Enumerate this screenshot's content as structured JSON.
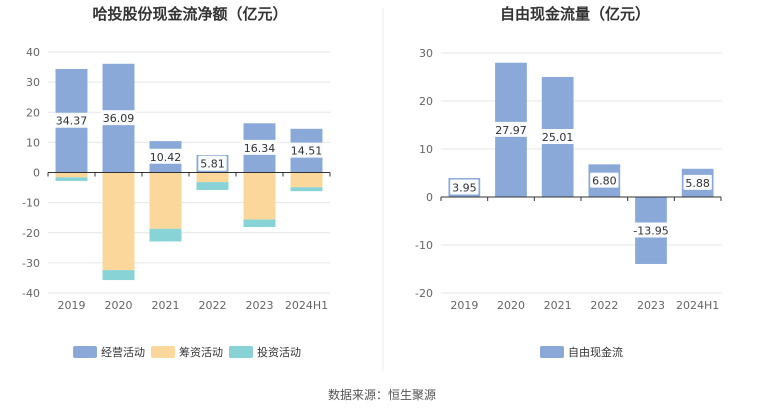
{
  "source_text": "数据来源：恒生聚源",
  "colors": {
    "operating": "#8aa9d9",
    "financing": "#fcd79b",
    "investing": "#88d3d6",
    "free_cash_flow": "#8aa9d9",
    "grid": "#e6e6e6",
    "axis": "#333333"
  },
  "chart_data": [
    {
      "type": "bar",
      "stacked": true,
      "title": "哈投股份现金流净额（亿元）",
      "categories": [
        "2019",
        "2020",
        "2021",
        "2022",
        "2023",
        "2024H1"
      ],
      "ylim": [
        -40,
        40
      ],
      "yticks": [
        -40,
        -30,
        -20,
        -10,
        0,
        10,
        20,
        30,
        40
      ],
      "grid": true,
      "legend": "bottom",
      "series": [
        {
          "name": "经营活动",
          "values": [
            34.37,
            36.09,
            10.42,
            5.81,
            16.34,
            14.51
          ],
          "labels": [
            "34.37",
            "36.09",
            "10.42",
            "5.81",
            "16.34",
            "14.51"
          ]
        },
        {
          "name": "筹资活动",
          "values": [
            -1.6,
            -32.4,
            -18.7,
            -3.2,
            -15.6,
            -4.9
          ]
        },
        {
          "name": "投资活动",
          "values": [
            -1.2,
            -3.3,
            -4.2,
            -2.6,
            -2.5,
            -1.3
          ]
        }
      ]
    },
    {
      "type": "bar",
      "title": "自由现金流量（亿元）",
      "categories": [
        "2019",
        "2020",
        "2021",
        "2022",
        "2023",
        "2024H1"
      ],
      "ylim": [
        -20,
        30
      ],
      "yticks": [
        -20,
        -10,
        0,
        10,
        20,
        30
      ],
      "grid": true,
      "legend": "bottom",
      "series": [
        {
          "name": "自由现金流",
          "values": [
            3.95,
            27.97,
            25.01,
            6.8,
            -13.95,
            5.88
          ],
          "labels": [
            "3.95",
            "27.97",
            "25.01",
            "6.80",
            "-13.95",
            "5.88"
          ]
        }
      ]
    }
  ]
}
